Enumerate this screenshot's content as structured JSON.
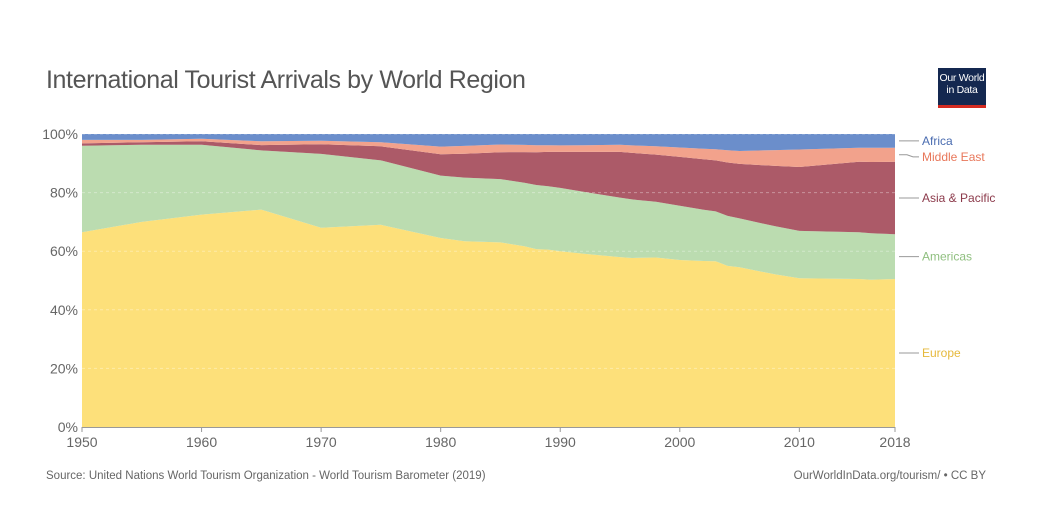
{
  "header": {
    "title": "International Tourist Arrivals by World Region",
    "logo_line1": "Our World",
    "logo_line2": "in Data"
  },
  "footer": {
    "source": "Source: United Nations World Tourism Organization - World Tourism Barometer (2019)",
    "url": "OurWorldInData.org/tourism/ • CC BY"
  },
  "chart_data": {
    "type": "area",
    "stacked": true,
    "normalized": true,
    "xlim": [
      1950,
      2018
    ],
    "ylim": [
      0,
      100
    ],
    "x_ticks": [
      1950,
      1960,
      1970,
      1980,
      1990,
      2000,
      2010,
      2018
    ],
    "y_ticks": [
      0,
      20,
      40,
      60,
      80,
      100
    ],
    "y_tick_labels": [
      "0%",
      "20%",
      "40%",
      "60%",
      "80%",
      "100%"
    ],
    "grid": "horizontal-dotted",
    "legend_placement": "right",
    "series": [
      {
        "name": "Europe",
        "color": "#fde07a",
        "x": [
          1950,
          1955,
          1960,
          1965,
          1970,
          1975,
          1980,
          1982,
          1985,
          1987,
          1988,
          1989,
          1990,
          1992,
          1995,
          1996,
          1998,
          2000,
          2002,
          2003,
          2004,
          2005,
          2008,
          2010,
          2015,
          2016,
          2018
        ],
        "values": [
          66.5,
          70,
          72.5,
          74.2,
          68,
          69,
          64.5,
          62.5,
          63,
          61.5,
          60,
          60.5,
          60,
          59,
          58,
          57.5,
          58.5,
          57,
          57.5,
          58,
          55,
          54.5,
          52,
          51,
          50.5,
          50,
          50.5
        ]
      },
      {
        "name": "Americas",
        "color": "#bbdcb0",
        "x": [
          1950,
          1955,
          1960,
          1965,
          1970,
          1975,
          1980,
          1985,
          1990,
          1995,
          2000,
          2005,
          2010,
          2015,
          2018
        ],
        "values": [
          29.5,
          26.3,
          23.8,
          20.2,
          25.2,
          22,
          21.3,
          21.6,
          21.6,
          20.3,
          18.5,
          16.7,
          16.2,
          16,
          15.3
        ]
      },
      {
        "name": "Asia & Pacific",
        "color": "#ac5a68",
        "x": [
          1950,
          1955,
          1960,
          1965,
          1970,
          1975,
          1980,
          1985,
          1990,
          1995,
          2000,
          2005,
          2010,
          2015,
          2018
        ],
        "values": [
          0.8,
          0.9,
          1.2,
          1.8,
          3.3,
          4.8,
          7.3,
          9.2,
          12.3,
          15.6,
          16.7,
          18.6,
          21.9,
          24,
          24.7
        ]
      },
      {
        "name": "Middle East",
        "color": "#f2a28c",
        "x": [
          1950,
          1955,
          1960,
          1965,
          1970,
          1975,
          1980,
          1985,
          1990,
          1995,
          2000,
          2005,
          2010,
          2015,
          2018
        ],
        "values": [
          1.2,
          0.8,
          0.9,
          1.3,
          1.2,
          1.4,
          2.6,
          2.6,
          2.2,
          2.4,
          3.2,
          4.4,
          6,
          4.8,
          4.8
        ]
      },
      {
        "name": "Africa",
        "color": "#6b8ecb",
        "x": [
          1950,
          1955,
          1960,
          1965,
          1970,
          1975,
          1980,
          1985,
          1990,
          1995,
          2000,
          2005,
          2010,
          2015,
          2018
        ],
        "values": [
          2,
          2,
          1.6,
          2.5,
          2.3,
          2.8,
          4.3,
          3.6,
          3.9,
          3.7,
          4.6,
          5.8,
          5.3,
          4.7,
          4.7
        ]
      }
    ]
  }
}
